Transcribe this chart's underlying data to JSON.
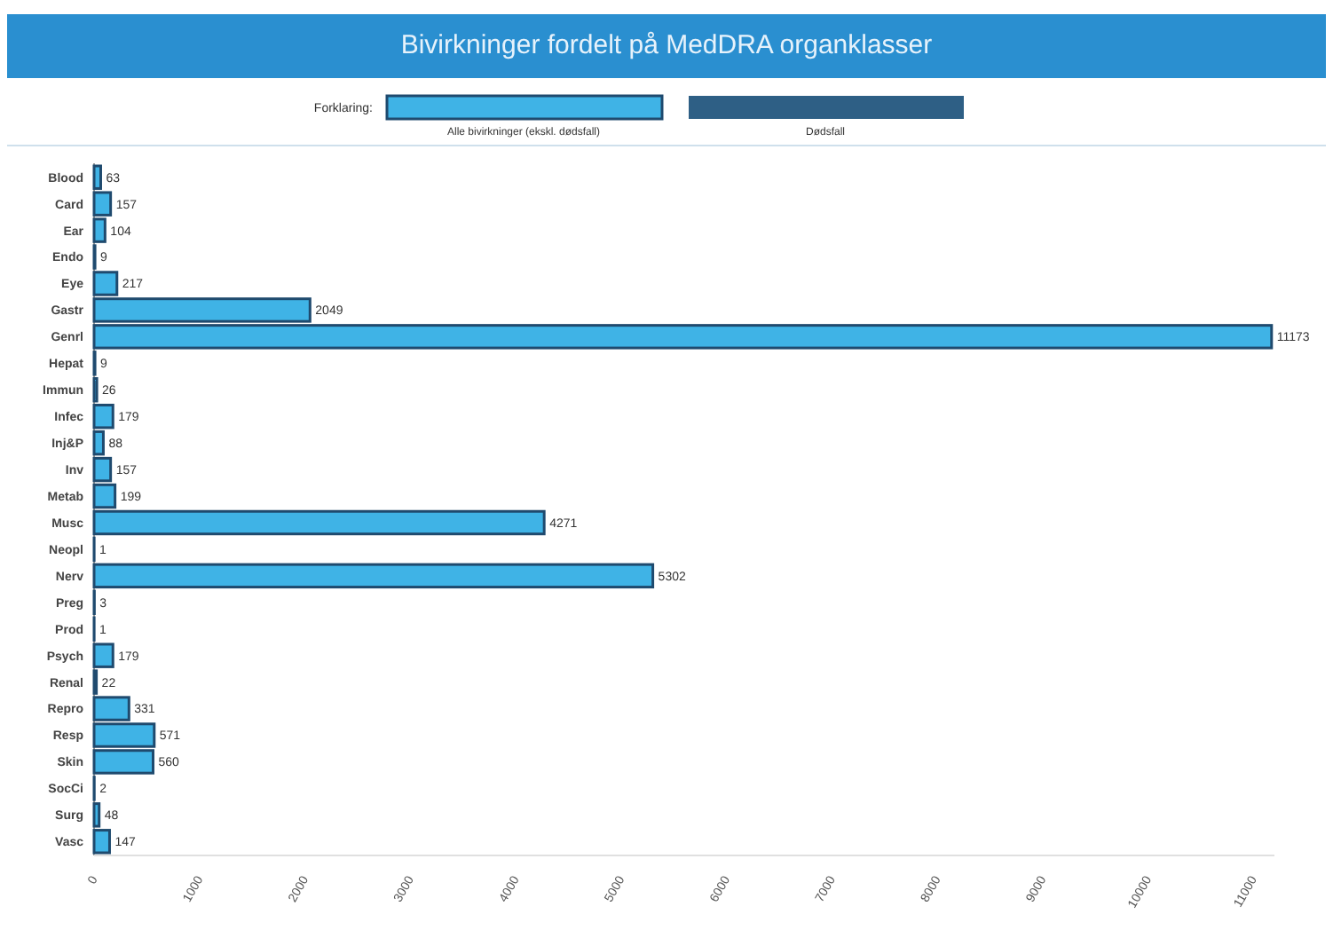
{
  "chart_data": {
    "type": "bar",
    "orientation": "horizontal",
    "title": "Bivirkninger fordelt på MedDRA organklasser",
    "legend_title": "Forklaring:",
    "legend": "top",
    "categories": [
      "Blood",
      "Card",
      "Ear",
      "Endo",
      "Eye",
      "Gastr",
      "Genrl",
      "Hepat",
      "Immun",
      "Infec",
      "Inj&P",
      "Inv",
      "Metab",
      "Musc",
      "Neopl",
      "Nerv",
      "Preg",
      "Prod",
      "Psych",
      "Renal",
      "Repro",
      "Resp",
      "Skin",
      "SocCi",
      "Surg",
      "Vasc"
    ],
    "series": [
      {
        "name": "Alle bivirkninger (ekskl. dødsfall)",
        "color": "#3fb3e6",
        "values": [
          63,
          157,
          104,
          9,
          217,
          2049,
          11173,
          9,
          26,
          179,
          88,
          157,
          199,
          4271,
          1,
          5302,
          3,
          1,
          179,
          22,
          331,
          571,
          560,
          2,
          48,
          147
        ]
      }
    ],
    "annotations": [
      "Dødsfall"
    ],
    "data_labels": true,
    "xlim": [
      0,
      11200
    ],
    "xticks": [
      0,
      1000,
      2000,
      3000,
      4000,
      5000,
      6000,
      7000,
      8000,
      9000,
      10000,
      11000
    ]
  }
}
